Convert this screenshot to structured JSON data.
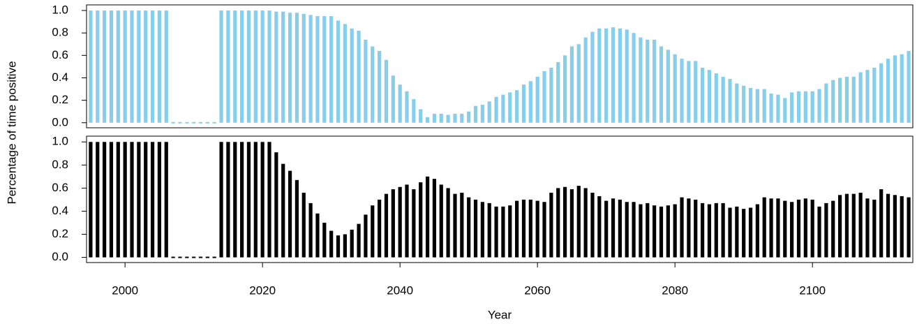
{
  "chart_data": {
    "type": "bar",
    "y_label": "Percentage of time positive",
    "x_label": "Year",
    "x": [
      1995,
      1996,
      1997,
      1998,
      1999,
      2000,
      2001,
      2002,
      2003,
      2004,
      2005,
      2006,
      2007,
      2008,
      2009,
      2010,
      2011,
      2012,
      2013,
      2014,
      2015,
      2016,
      2017,
      2018,
      2019,
      2020,
      2021,
      2022,
      2023,
      2024,
      2025,
      2026,
      2027,
      2028,
      2029,
      2030,
      2031,
      2032,
      2033,
      2034,
      2035,
      2036,
      2037,
      2038,
      2039,
      2040,
      2041,
      2042,
      2043,
      2044,
      2045,
      2046,
      2047,
      2048,
      2049,
      2050,
      2051,
      2052,
      2053,
      2054,
      2055,
      2056,
      2057,
      2058,
      2059,
      2060,
      2061,
      2062,
      2063,
      2064,
      2065,
      2066,
      2067,
      2068,
      2069,
      2070,
      2071,
      2072,
      2073,
      2074,
      2075,
      2076,
      2077,
      2078,
      2079,
      2080,
      2081,
      2082,
      2083,
      2084,
      2085,
      2086,
      2087,
      2088,
      2089,
      2090,
      2091,
      2092,
      2093,
      2094,
      2095,
      2096,
      2097,
      2098,
      2099,
      2100,
      2101,
      2102,
      2103,
      2104,
      2105,
      2106,
      2107,
      2108,
      2109,
      2110,
      2111,
      2112,
      2113,
      2114
    ],
    "xlim": [
      1994.4,
      2114.6
    ],
    "xticks": [
      2000,
      2020,
      2040,
      2060,
      2080,
      2100
    ],
    "ylim": [
      -0.045,
      1.05
    ],
    "yticks": [
      {
        "value": 0,
        "label": "0.0"
      },
      0.2,
      0.4,
      0.6,
      0.8,
      {
        "value": 1,
        "label": "1.0"
      }
    ],
    "series": [
      {
        "color": "#87ceeb",
        "values": [
          1,
          1,
          1,
          1,
          1,
          1,
          1,
          1,
          1,
          1,
          1,
          1,
          0,
          0,
          0,
          0,
          0,
          0,
          0,
          1,
          1,
          1,
          1,
          1,
          1,
          1,
          1,
          0.99,
          0.99,
          0.98,
          0.98,
          0.97,
          0.96,
          0.95,
          0.95,
          0.95,
          0.91,
          0.88,
          0.84,
          0.82,
          0.74,
          0.68,
          0.64,
          0.56,
          0.42,
          0.34,
          0.28,
          0.21,
          0.12,
          0.05,
          0.08,
          0.08,
          0.07,
          0.08,
          0.08,
          0.1,
          0.15,
          0.16,
          0.19,
          0.23,
          0.25,
          0.27,
          0.29,
          0.34,
          0.37,
          0.41,
          0.46,
          0.49,
          0.54,
          0.6,
          0.68,
          0.7,
          0.76,
          0.81,
          0.84,
          0.84,
          0.85,
          0.84,
          0.83,
          0.8,
          0.76,
          0.74,
          0.74,
          0.68,
          0.65,
          0.61,
          0.57,
          0.55,
          0.55,
          0.49,
          0.47,
          0.44,
          0.41,
          0.39,
          0.35,
          0.33,
          0.31,
          0.3,
          0.3,
          0.26,
          0.25,
          0.22,
          0.27,
          0.28,
          0.28,
          0.28,
          0.3,
          0.35,
          0.38,
          0.4,
          0.41,
          0.41,
          0.45,
          0.47,
          0.49,
          0.53,
          0.57,
          0.6,
          0.61,
          0.64
        ]
      },
      {
        "color": "#000000",
        "values": [
          1,
          1,
          1,
          1,
          1,
          1,
          1,
          1,
          1,
          1,
          1,
          1,
          0,
          0,
          0,
          0,
          0,
          0,
          0,
          1,
          1,
          1,
          1,
          1,
          1,
          1,
          1,
          0.91,
          0.81,
          0.75,
          0.67,
          0.56,
          0.47,
          0.38,
          0.3,
          0.23,
          0.19,
          0.2,
          0.24,
          0.29,
          0.37,
          0.45,
          0.5,
          0.55,
          0.59,
          0.61,
          0.63,
          0.59,
          0.65,
          0.7,
          0.68,
          0.63,
          0.6,
          0.55,
          0.56,
          0.52,
          0.5,
          0.48,
          0.47,
          0.44,
          0.44,
          0.45,
          0.49,
          0.5,
          0.5,
          0.49,
          0.48,
          0.56,
          0.6,
          0.61,
          0.59,
          0.62,
          0.6,
          0.56,
          0.53,
          0.49,
          0.51,
          0.5,
          0.48,
          0.48,
          0.46,
          0.47,
          0.45,
          0.44,
          0.45,
          0.46,
          0.52,
          0.51,
          0.5,
          0.47,
          0.46,
          0.47,
          0.47,
          0.43,
          0.44,
          0.42,
          0.43,
          0.46,
          0.52,
          0.51,
          0.51,
          0.49,
          0.48,
          0.5,
          0.51,
          0.5,
          0.44,
          0.47,
          0.49,
          0.54,
          0.55,
          0.55,
          0.56,
          0.51,
          0.5,
          0.59,
          0.55,
          0.54,
          0.53,
          0.52
        ]
      }
    ]
  }
}
